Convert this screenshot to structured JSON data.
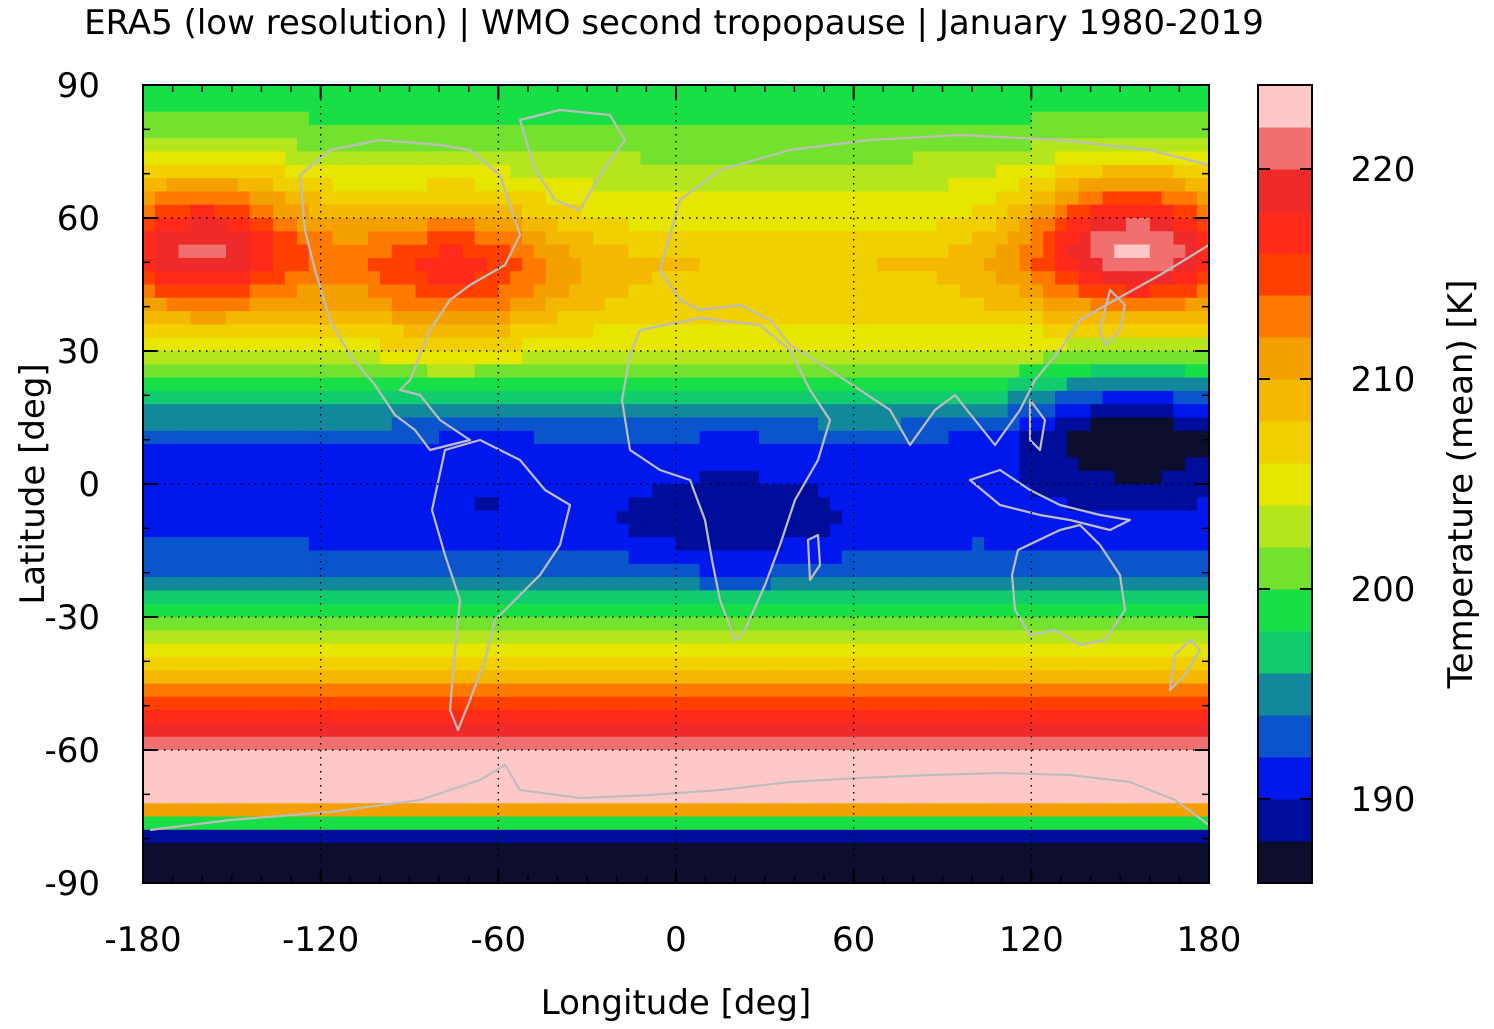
{
  "chart_data": {
    "type": "heatmap",
    "title": "ERA5 (low resolution) | WMO second tropopause | January 1980-2019",
    "xlabel": "Longitude [deg]",
    "ylabel": "Latitude [deg]",
    "xlim": [
      -180,
      180
    ],
    "ylim": [
      -90,
      90
    ],
    "x_ticks": [
      -180,
      -120,
      -60,
      0,
      60,
      120,
      180
    ],
    "x_tick_labels": [
      "-180",
      "-120",
      "-60",
      "0",
      "60",
      "120",
      "180"
    ],
    "y_ticks": [
      90,
      60,
      30,
      0,
      -30,
      -60,
      -90
    ],
    "y_tick_labels": [
      "90",
      "60",
      "30",
      "0",
      "-30",
      "-60",
      "-90"
    ],
    "grid": true,
    "colorbar": {
      "label": "Temperature (mean) [K]",
      "range": [
        186,
        224
      ],
      "ticks": [
        190,
        200,
        210,
        220
      ],
      "tick_labels": [
        "190",
        "200",
        "210",
        "220"
      ],
      "colors": [
        "#0d0d2e",
        "#000c9a",
        "#0018ee",
        "#0a54cc",
        "#12889c",
        "#10cc6e",
        "#19df46",
        "#73e22e",
        "#b5e61d",
        "#e6e600",
        "#f0d000",
        "#f5b800",
        "#f4a000",
        "#ff7b00",
        "#ff4000",
        "#ff2a1a",
        "#ee2a2a",
        "#f07070",
        "#ffc8c8"
      ]
    },
    "zonal_mean_profile_K": {
      "lat": [
        90,
        80,
        70,
        60,
        50,
        40,
        30,
        20,
        10,
        0,
        -10,
        -20,
        -30,
        -40,
        -50,
        -60,
        -70,
        -80,
        -90
      ],
      "value": [
        199,
        200,
        203,
        205,
        208,
        207,
        204,
        198,
        192,
        191,
        191,
        194,
        200,
        207,
        215,
        222,
        224,
        187,
        187
      ]
    },
    "anomalies": [
      {
        "lon": -160,
        "lat": 55,
        "value": 220
      },
      {
        "lon": -75,
        "lat": 50,
        "value": 217
      },
      {
        "lon": 155,
        "lat": 55,
        "value": 222
      },
      {
        "lon": 155,
        "lat": 15,
        "value": 188
      },
      {
        "lon": 20,
        "lat": -12,
        "value": 189
      },
      {
        "lon": -65,
        "lat": -5,
        "value": 190
      }
    ]
  }
}
